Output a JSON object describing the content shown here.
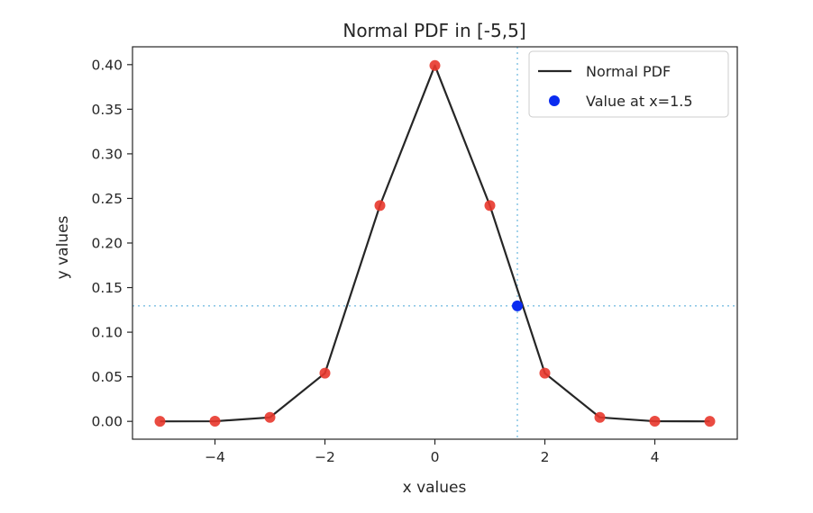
{
  "chart_data": {
    "type": "line",
    "title": "Normal PDF in [-5,5]",
    "xlabel": "x values",
    "ylabel": "y values",
    "xlim": [
      -5.5,
      5.5
    ],
    "ylim": [
      -0.02,
      0.42
    ],
    "x_ticks": [
      -4,
      -2,
      0,
      2,
      4
    ],
    "x_tick_labels": [
      "−4",
      "−2",
      "0",
      "2",
      "4"
    ],
    "y_ticks": [
      0.0,
      0.05,
      0.1,
      0.15,
      0.2,
      0.25,
      0.3,
      0.35,
      0.4
    ],
    "y_tick_labels": [
      "0.00",
      "0.05",
      "0.10",
      "0.15",
      "0.20",
      "0.25",
      "0.30",
      "0.35",
      "0.40"
    ],
    "grid": false,
    "legend_position": "top-right",
    "series": [
      {
        "name": "Normal PDF",
        "kind": "line",
        "color": "#262626",
        "x": [
          -5,
          -4,
          -3,
          -2,
          -1,
          0,
          1,
          2,
          3,
          4,
          5
        ],
        "y": [
          1.5e-06,
          0.000134,
          0.00443,
          0.054,
          0.242,
          0.399,
          0.242,
          0.054,
          0.00443,
          0.000134,
          1.5e-06
        ]
      },
      {
        "kind": "scatter",
        "color": "#e8372c",
        "x": [
          -5,
          -4,
          -3,
          -2,
          -1,
          0,
          1,
          2,
          3,
          4,
          5
        ],
        "y": [
          1.5e-06,
          0.000134,
          0.00443,
          0.054,
          0.242,
          0.399,
          0.242,
          0.054,
          0.00443,
          0.000134,
          1.5e-06
        ]
      },
      {
        "name": "Value at x=1.5",
        "kind": "scatter",
        "color": "#0a2bf0",
        "x": [
          1.5
        ],
        "y": [
          0.1295
        ]
      }
    ],
    "reference_lines": [
      {
        "orientation": "vertical",
        "value": 1.5,
        "style": "dotted",
        "color": "#8ec8e6"
      },
      {
        "orientation": "horizontal",
        "value": 0.1295,
        "style": "dotted",
        "color": "#8ec8e6"
      }
    ],
    "colors": {
      "axis": "#262626",
      "line": "#262626",
      "red_points": "#e8372c",
      "highlight_point": "#0a2bf0",
      "reference": "#8ec8e6"
    }
  }
}
